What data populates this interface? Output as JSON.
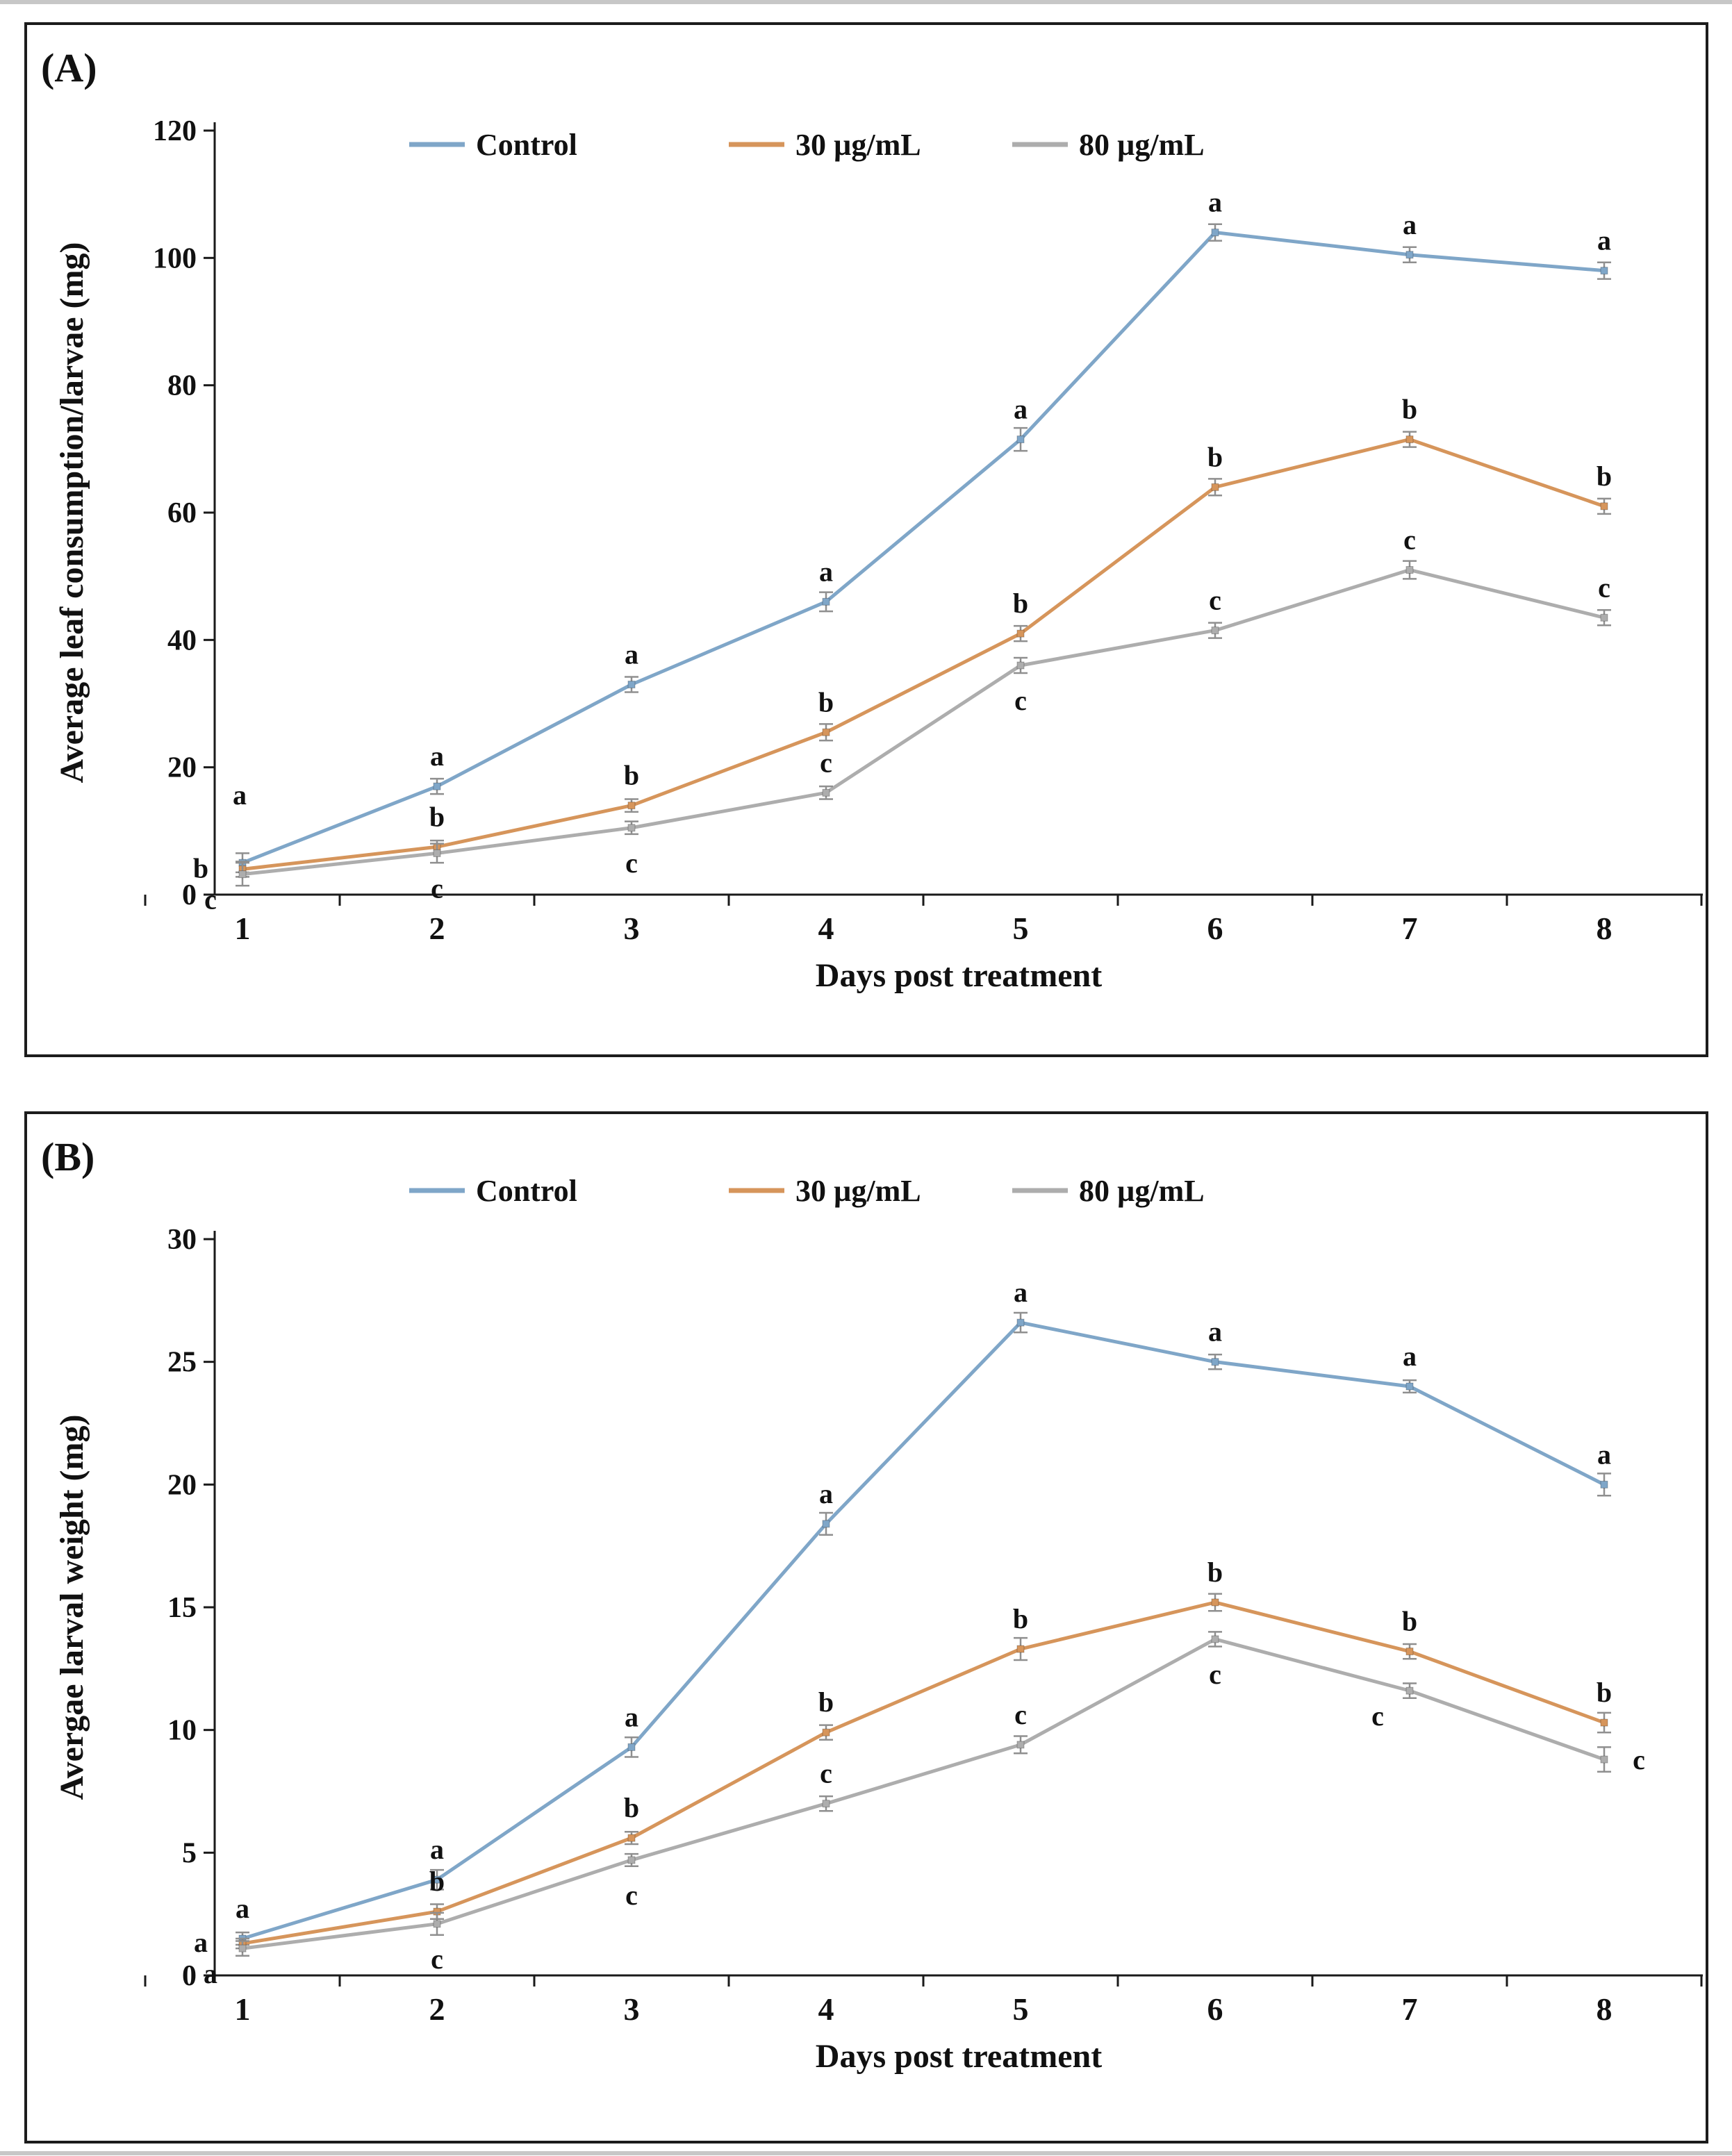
{
  "figure": {
    "panel_a_label": "(A)",
    "panel_b_label": "(B)"
  },
  "chart_data": [
    {
      "id": "A",
      "type": "line",
      "panel_label": "(A)",
      "xlabel": "Days post treatment",
      "ylabel": "Average leaf consumption/larvae (mg)",
      "categories": [
        1,
        2,
        3,
        4,
        5,
        6,
        7,
        8
      ],
      "ylim": [
        0,
        120
      ],
      "yticks": [
        0,
        20,
        40,
        60,
        80,
        100,
        120
      ],
      "grid": false,
      "legend_position": "top",
      "legend": [
        "Control",
        "30 µg/mL",
        "80 µg/mL"
      ],
      "series": [
        {
          "name": "Control",
          "color": "#7fa6c8",
          "values": [
            5,
            17,
            33,
            46,
            71.5,
            104,
            100.5,
            98
          ],
          "errors": [
            1.5,
            1.2,
            1.2,
            1.5,
            1.8,
            1.3,
            1.2,
            1.3
          ],
          "letters": [
            "a",
            "a",
            "a",
            "a",
            "a",
            "a",
            "a",
            "a"
          ],
          "letter_pos": [
            "above-high",
            "above",
            "above",
            "above",
            "above",
            "above",
            "above",
            "above"
          ]
        },
        {
          "name": "30 µg/mL",
          "color": "#d6955b",
          "values": [
            4,
            7.5,
            14,
            25.5,
            41,
            64,
            71.5,
            61
          ],
          "errors": [
            1.2,
            1.0,
            1.0,
            1.3,
            1.2,
            1.3,
            1.2,
            1.2
          ],
          "letters": [
            "b",
            "b",
            "b",
            "b",
            "b",
            "b",
            "b",
            "b"
          ],
          "letter_pos": [
            "left",
            "above",
            "above",
            "above",
            "above",
            "above",
            "above",
            "above"
          ]
        },
        {
          "name": "80 µg/mL",
          "color": "#adadad",
          "values": [
            3.2,
            6.5,
            10.5,
            16,
            36,
            41.5,
            51,
            43.5
          ],
          "errors": [
            1.8,
            1.5,
            1.0,
            1.0,
            1.2,
            1.2,
            1.4,
            1.2
          ],
          "letters": [
            "c",
            "c",
            "c",
            "c",
            "c",
            "c",
            "c",
            "c"
          ],
          "letter_pos": [
            "below-left",
            "below",
            "below",
            "above",
            "below",
            "above",
            "above",
            "above"
          ]
        }
      ]
    },
    {
      "id": "B",
      "type": "line",
      "panel_label": "(B)",
      "xlabel": "Days post treatment",
      "ylabel": "Avergae larval weight (mg)",
      "categories": [
        1,
        2,
        3,
        4,
        5,
        6,
        7,
        8
      ],
      "ylim": [
        0,
        30
      ],
      "yticks": [
        0,
        5,
        10,
        15,
        20,
        25,
        30
      ],
      "grid": false,
      "legend_position": "top",
      "legend": [
        "Control",
        "30 µg/mL",
        "80 µg/mL"
      ],
      "series": [
        {
          "name": "Control",
          "color": "#7fa6c8",
          "values": [
            1.5,
            3.9,
            9.3,
            18.4,
            26.6,
            25.0,
            24.0,
            20.0
          ],
          "errors": [
            0.25,
            0.4,
            0.4,
            0.45,
            0.4,
            0.3,
            0.25,
            0.45
          ],
          "letters": [
            "a",
            "a",
            "a",
            "a",
            "a",
            "a",
            "a",
            "a"
          ],
          "letter_pos": [
            "above",
            "above",
            "above",
            "above",
            "above",
            "above",
            "above",
            "above"
          ]
        },
        {
          "name": "30 µg/mL",
          "color": "#d6955b",
          "values": [
            1.3,
            2.6,
            5.6,
            9.9,
            13.3,
            15.2,
            13.2,
            10.3
          ],
          "errors": [
            0.2,
            0.3,
            0.25,
            0.3,
            0.45,
            0.35,
            0.3,
            0.4
          ],
          "letters": [
            "a",
            "b",
            "b",
            "b",
            "b",
            "b",
            "b",
            "b"
          ],
          "letter_pos": [
            "left",
            "above",
            "above",
            "above",
            "above",
            "above",
            "above",
            "above"
          ]
        },
        {
          "name": "80 µg/mL",
          "color": "#adadad",
          "values": [
            1.1,
            2.1,
            4.7,
            7.0,
            9.4,
            13.7,
            11.6,
            8.8
          ],
          "errors": [
            0.3,
            0.45,
            0.25,
            0.3,
            0.35,
            0.3,
            0.3,
            0.5
          ],
          "letters": [
            "a",
            "c",
            "c",
            "c",
            "c",
            "c",
            "c",
            "c"
          ],
          "letter_pos": [
            "below-left",
            "below",
            "below",
            "above",
            "above",
            "below",
            "below-left",
            "right"
          ]
        }
      ]
    }
  ]
}
